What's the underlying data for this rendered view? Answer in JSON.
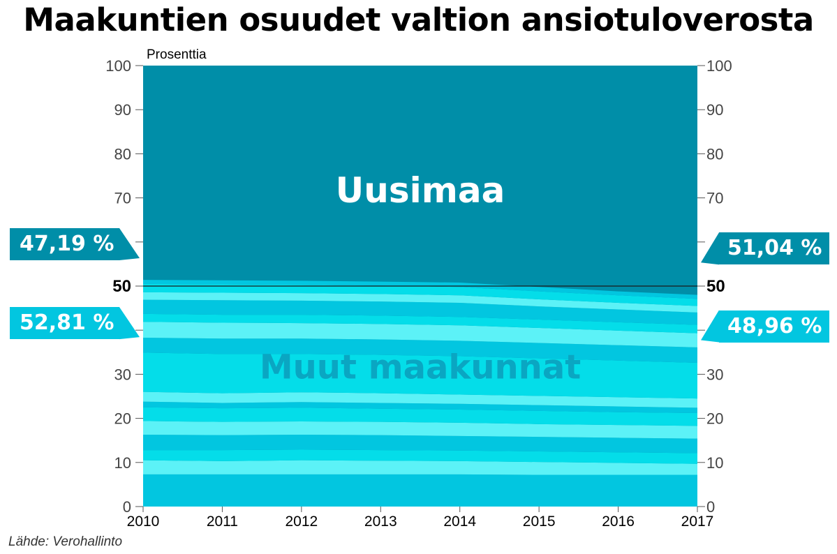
{
  "title": "Maakuntien osuudet valtion ansiotuloverosta",
  "unit_label": "Prosenttia",
  "source": "Lähde: Verohallinto",
  "colors": {
    "uusimaa": "#008ea8",
    "muut_text": "#0aa6c2",
    "band_dark": "#02c6e0",
    "band_mid": "#04dde9",
    "band_light": "#5cf2f7",
    "line50": "#1a1a1a"
  },
  "chart_data": {
    "type": "area",
    "title": "Maakuntien osuudet valtion ansiotuloverosta",
    "ylabel": "Prosenttia",
    "xlabel": "",
    "x": [
      2010,
      2011,
      2012,
      2013,
      2014,
      2015,
      2016,
      2017
    ],
    "ylim": [
      0,
      100
    ],
    "yticks": [
      0,
      10,
      20,
      30,
      40,
      50,
      60,
      70,
      80,
      90,
      100
    ],
    "ytick_labels_left": [
      "0",
      "10",
      "20",
      "30",
      "",
      "50",
      "",
      "70",
      "80",
      "90",
      "100"
    ],
    "ytick_labels_right": [
      "0",
      "10",
      "20",
      "30",
      "",
      "50",
      "",
      "70",
      "80",
      "90",
      "100"
    ],
    "highlight_y": 50,
    "series": [
      {
        "name": "Muut maakunnat",
        "values": [
          52.81,
          52.7,
          52.5,
          52.3,
          52.0,
          50.9,
          49.9,
          48.96
        ]
      },
      {
        "name": "Uusimaa",
        "values": [
          47.19,
          47.3,
          47.5,
          47.7,
          48.0,
          49.1,
          50.1,
          51.04
        ]
      }
    ],
    "bands_boundaries": [
      [
        7.3,
        7.3,
        7.3,
        7.3,
        7.3,
        7.2,
        7.2,
        7.2
      ],
      [
        10.5,
        10.3,
        10.5,
        10.4,
        10.3,
        10.1,
        9.9,
        9.7
      ],
      [
        12.8,
        12.8,
        12.9,
        12.8,
        12.7,
        12.5,
        12.3,
        12.1
      ],
      [
        16.3,
        16.2,
        16.3,
        16.2,
        16.0,
        15.8,
        15.6,
        15.4
      ],
      [
        19.4,
        19.2,
        19.3,
        19.2,
        19.0,
        18.7,
        18.5,
        18.3
      ],
      [
        22.5,
        22.3,
        22.4,
        22.2,
        22.0,
        21.7,
        21.4,
        21.2
      ],
      [
        23.8,
        23.5,
        23.7,
        23.5,
        23.3,
        23.0,
        22.7,
        22.4
      ],
      [
        26.0,
        25.7,
        25.9,
        25.7,
        25.4,
        25.1,
        24.8,
        24.5
      ],
      [
        34.9,
        34.6,
        34.6,
        34.4,
        34.1,
        33.6,
        33.1,
        32.6
      ],
      [
        38.3,
        38.1,
        38.1,
        37.9,
        37.6,
        37.1,
        36.6,
        36.1
      ],
      [
        41.9,
        41.7,
        41.6,
        41.4,
        41.1,
        40.5,
        39.9,
        39.3
      ],
      [
        43.7,
        43.5,
        43.5,
        43.3,
        43.0,
        42.4,
        41.8,
        41.2
      ],
      [
        46.9,
        46.8,
        46.7,
        46.5,
        46.2,
        45.4,
        44.7,
        44.0
      ],
      [
        48.6,
        48.5,
        48.4,
        48.2,
        47.9,
        47.0,
        46.2,
        45.5
      ],
      [
        50.5,
        50.4,
        50.3,
        50.1,
        49.8,
        48.8,
        47.9,
        47.1
      ],
      [
        51.4,
        51.3,
        51.2,
        51.0,
        50.8,
        49.8,
        48.8,
        48.0
      ]
    ],
    "series_labels": {
      "uusimaa": {
        "text": "Uusimaa",
        "x": 2013.5,
        "y": 69
      },
      "muut": {
        "text": "Muut maakunnat",
        "x": 2013.5,
        "y": 29
      }
    },
    "annotations": [
      {
        "text": "47,19 %",
        "side": "left",
        "series": "Uusimaa",
        "y": 59.5
      },
      {
        "text": "52,81 %",
        "side": "left",
        "series": "Muut maakunnat",
        "y": 41.6
      },
      {
        "text": "51,04 %",
        "side": "right",
        "series": "Uusimaa",
        "y": 58.5
      },
      {
        "text": "48,96 %",
        "side": "right",
        "series": "Muut maakunnat",
        "y": 40.9
      }
    ]
  }
}
